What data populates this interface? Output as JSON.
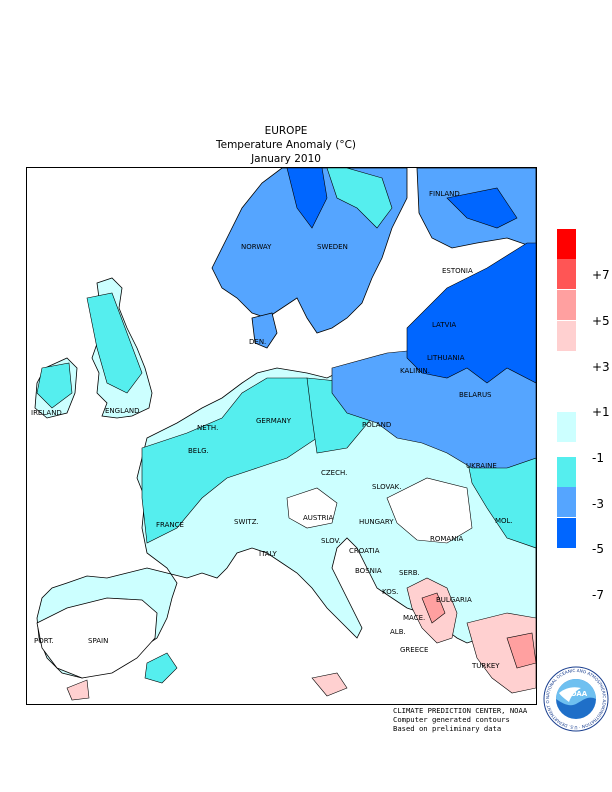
{
  "header": {
    "region": "EUROPE",
    "variable": "Temperature Anomaly (°C)",
    "period": "January 2010"
  },
  "map": {
    "countries": [
      {
        "name": "FINLAND"
      },
      {
        "name": "NORWAY"
      },
      {
        "name": "SWEDEN"
      },
      {
        "name": "ESTONIA"
      },
      {
        "name": "LATVIA"
      },
      {
        "name": "LITHUANIA"
      },
      {
        "name": "KALININ."
      },
      {
        "name": "BELARUS"
      },
      {
        "name": "DEN."
      },
      {
        "name": "IRELAND"
      },
      {
        "name": "ENGLAND"
      },
      {
        "name": "NETH."
      },
      {
        "name": "GERMANY"
      },
      {
        "name": "POLAND"
      },
      {
        "name": "BELG."
      },
      {
        "name": "UKRAINE"
      },
      {
        "name": "CZECH."
      },
      {
        "name": "SLOVAK."
      },
      {
        "name": "FRANCE"
      },
      {
        "name": "SWITZ."
      },
      {
        "name": "AUSTRIA"
      },
      {
        "name": "HUNGARY"
      },
      {
        "name": "MOL."
      },
      {
        "name": "ROMANIA"
      },
      {
        "name": "SLOV."
      },
      {
        "name": "ITALY"
      },
      {
        "name": "CROATIA"
      },
      {
        "name": "BOSNIA"
      },
      {
        "name": "SERB."
      },
      {
        "name": "BULGARIA"
      },
      {
        "name": "KOS."
      },
      {
        "name": "MACE."
      },
      {
        "name": "PORT."
      },
      {
        "name": "SPAIN"
      },
      {
        "name": "ALB."
      },
      {
        "name": "GREECE"
      },
      {
        "name": "TURKEY"
      }
    ]
  },
  "legend": {
    "ticks": [
      "+7",
      "+5",
      "+3",
      "+1",
      "-1",
      "-3",
      "-5",
      "-7"
    ],
    "colors": [
      "#ff0000",
      "#ff5555",
      "#ffa0a0",
      "#ffd0d0",
      "#ffffff",
      "#ccffff",
      "#55eeee",
      "#55a5ff",
      "#0066ff"
    ]
  },
  "footer": {
    "line1": "CLIMATE PREDICTION CENTER, NOAA",
    "line2": "Computer generated contours",
    "line3": "Based on preliminary data"
  },
  "logo": {
    "center_text": "NOAA",
    "ring_text": "NATIONAL OCEANIC AND ATMOSPHERIC ADMINISTRATION · U.S. DEPARTMENT OF COMMERCE"
  }
}
